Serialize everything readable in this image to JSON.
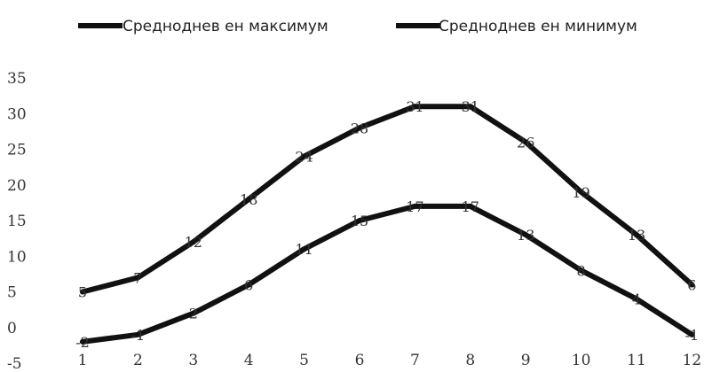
{
  "chart_data": {
    "type": "line",
    "title": "",
    "xlabel": "",
    "ylabel": "",
    "categories": [
      "1",
      "2",
      "3",
      "4",
      "5",
      "6",
      "7",
      "8",
      "9",
      "10",
      "11",
      "12"
    ],
    "series": [
      {
        "name": "Средноднев ен максимум",
        "values": [
          5,
          7,
          12,
          18,
          24,
          28,
          31,
          31,
          26,
          19,
          13,
          6
        ],
        "color": "#111111"
      },
      {
        "name": "Средноднев ен минимум",
        "values": [
          -2,
          -1,
          2,
          6,
          11,
          15,
          17,
          17,
          13,
          8,
          4,
          -1
        ],
        "color": "#111111"
      }
    ],
    "y_ticks": [
      "35",
      "30",
      "25",
      "20",
      "15",
      "10",
      "5",
      "0",
      "-5"
    ],
    "ylim": [
      -5,
      35
    ],
    "legend_position": "top",
    "grid": false
  }
}
